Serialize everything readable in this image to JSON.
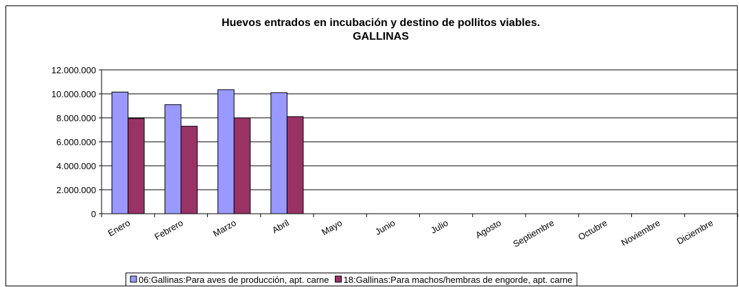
{
  "chart_data": {
    "type": "bar",
    "title": "Huevos entrados en incubación y destino de pollitos viables.",
    "subtitle": "GALLINAS",
    "categories": [
      "Enero",
      "Febrero",
      "Marzo",
      "Abril",
      "Mayo",
      "Junio",
      "Julio",
      "Agosto",
      "Septiembre",
      "Octubre",
      "Noviembre",
      "Diciembre"
    ],
    "series": [
      {
        "name": "06:Gallinas:Para aves de producción, apt. carne",
        "color": "#9999ff",
        "values": [
          10150000,
          9100000,
          10350000,
          10100000,
          null,
          null,
          null,
          null,
          null,
          null,
          null,
          null
        ]
      },
      {
        "name": "18:Gallinas:Para machos/hembras de engorde, apt. carne",
        "color": "#993366",
        "values": [
          7950000,
          7300000,
          8000000,
          8100000,
          null,
          null,
          null,
          null,
          null,
          null,
          null,
          null
        ]
      }
    ],
    "ylim": [
      0,
      12000000
    ],
    "yticks": [
      0,
      {
        "value": 2000000,
        "label": "2.000.000"
      },
      {
        "value": 4000000,
        "label": "4.000.000"
      },
      {
        "value": 6000000,
        "label": "6.000.000"
      },
      {
        "value": 8000000,
        "label": "8.000.000"
      },
      {
        "value": 10000000,
        "label": "10.000.000"
      },
      {
        "value": 12000000,
        "label": "12.000.000"
      }
    ],
    "grid": true,
    "legend": "bottom"
  }
}
